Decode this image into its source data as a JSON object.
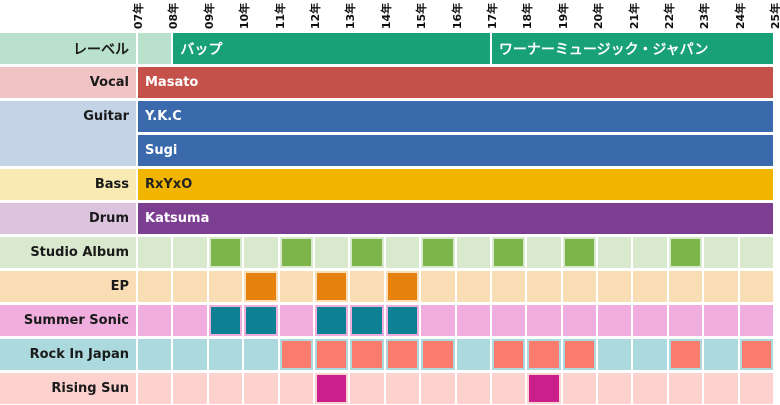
{
  "meta": {
    "description": "Band history timeline chart (2007-2025): label, members, releases and festival appearances"
  },
  "axis": {
    "tick_labels": [
      "07年",
      "08年",
      "09年",
      "10年",
      "11年",
      "12年",
      "13年",
      "14年",
      "15年",
      "16年",
      "17年",
      "18年",
      "19年",
      "20年",
      "21年",
      "22年",
      "23年",
      "24年",
      "25年"
    ],
    "start_year": 2007,
    "end_year": 2025
  },
  "colors": {
    "background": "#ffffff",
    "grid_gap": "#ffffff",
    "header_text": "#1a1a1a",
    "bar_text_light": "#ffffff",
    "bar_text_dark": "#222222",
    "axis_text": "#111111"
  },
  "rows": [
    {
      "header": "レーベル",
      "header_jp": true,
      "type": "bars",
      "grid_row": 1,
      "header_bg": "#b9e1cb",
      "track_bg": "#b9e1cb",
      "empty_segments": [
        {
          "start": 2007,
          "end": 2008
        }
      ],
      "bars": [
        {
          "label": "バップ",
          "jp": true,
          "start": 2008,
          "end": 2017,
          "color": "#18a077",
          "text_color": "#ffffff"
        },
        {
          "label": "ワーナーミュージック・ジャパン",
          "jp": true,
          "start": 2017,
          "end": 2025,
          "color": "#18a077",
          "text_color": "#ffffff"
        }
      ]
    },
    {
      "header": "Vocal",
      "type": "bars",
      "grid_row": 2,
      "header_bg": "#f0c4c4",
      "bars": [
        {
          "label": "Masato",
          "start": 2007,
          "end": 2025,
          "color": "#c5524a",
          "text_color": "#ffffff"
        }
      ]
    },
    {
      "header": "Guitar",
      "type": "bars",
      "grid_row": 3,
      "header_rowspan": 2,
      "header_bg": "#c4d3e6",
      "bars": [
        {
          "label": "Y.K.C",
          "start": 2007,
          "end": 2025,
          "color": "#3a69ac",
          "text_color": "#ffffff"
        }
      ]
    },
    {
      "header": null,
      "type": "bars",
      "grid_row": 4,
      "header_bg": "#c4d3e6",
      "bars": [
        {
          "label": "Sugi",
          "start": 2007,
          "end": 2025,
          "color": "#3a69ac",
          "text_color": "#ffffff"
        }
      ]
    },
    {
      "header": "Bass",
      "type": "bars",
      "grid_row": 5,
      "header_bg": "#f9e9b2",
      "bars": [
        {
          "label": "RxYxO",
          "start": 2007,
          "end": 2025,
          "color": "#f1b500",
          "text_color": "#222222"
        }
      ]
    },
    {
      "header": "Drum",
      "type": "bars",
      "grid_row": 6,
      "header_bg": "#dcc3de",
      "bars": [
        {
          "label": "Katsuma",
          "start": 2007,
          "end": 2025,
          "color": "#7c3e91",
          "text_color": "#ffffff"
        }
      ]
    },
    {
      "header": "Studio Album",
      "type": "cells",
      "grid_row": 7,
      "header_bg": "#d9e9cd",
      "pale": "#d9e9cd",
      "fill": "#7cb64a",
      "filled_years": [
        2009,
        2011,
        2013,
        2015,
        2017,
        2019,
        2022
      ]
    },
    {
      "header": "EP",
      "type": "cells",
      "grid_row": 8,
      "header_bg": "#f8ddb5",
      "pale": "#f8ddb5",
      "fill": "#e5810c",
      "filled_years": [
        2010,
        2012,
        2014
      ]
    },
    {
      "header": "Summer Sonic",
      "type": "cells",
      "grid_row": 9,
      "header_bg": "#efaede",
      "pale": "#efaede",
      "fill": "#0d8094",
      "filled_years": [
        2009,
        2010,
        2012,
        2013,
        2014
      ]
    },
    {
      "header": "Rock In Japan",
      "type": "cells",
      "grid_row": 10,
      "header_bg": "#abd9de",
      "pale": "#abd9de",
      "fill": "#f97c6e",
      "filled_years": [
        2011,
        2012,
        2013,
        2014,
        2015,
        2017,
        2018,
        2019,
        2022,
        2024
      ]
    },
    {
      "header": "Rising Sun",
      "type": "cells",
      "grid_row": 11,
      "header_bg": "#fdd2ce",
      "pale": "#fdd2ce",
      "fill": "#cb1f8e",
      "filled_years": [
        2012,
        2018
      ]
    }
  ],
  "chart_data": {
    "type": "bar",
    "subtype": "gantt-timeline",
    "title": "",
    "xlabel": "",
    "ylabel": "",
    "x_tick_labels": [
      "07年",
      "08年",
      "09年",
      "10年",
      "11年",
      "12年",
      "13年",
      "14年",
      "15年",
      "16年",
      "17年",
      "18年",
      "19年",
      "20年",
      "21年",
      "22年",
      "23年",
      "24年",
      "25年"
    ],
    "x_range": [
      2007,
      2025
    ],
    "grid": true,
    "legend": false,
    "rows": [
      {
        "label": "レーベル",
        "bars": [
          {
            "name": "バップ",
            "start": 2008,
            "end": 2017
          },
          {
            "name": "ワーナーミュージック・ジャパン",
            "start": 2017,
            "end": 2025
          }
        ]
      },
      {
        "label": "Vocal",
        "bars": [
          {
            "name": "Masato",
            "start": 2007,
            "end": 2025
          }
        ]
      },
      {
        "label": "Guitar",
        "bars": [
          {
            "name": "Y.K.C",
            "start": 2007,
            "end": 2025
          },
          {
            "name": "Sugi",
            "start": 2007,
            "end": 2025
          }
        ]
      },
      {
        "label": "Bass",
        "bars": [
          {
            "name": "RxYxO",
            "start": 2007,
            "end": 2025
          }
        ]
      },
      {
        "label": "Drum",
        "bars": [
          {
            "name": "Katsuma",
            "start": 2007,
            "end": 2025
          }
        ]
      },
      {
        "label": "Studio Album",
        "event_years": [
          2009,
          2011,
          2013,
          2015,
          2017,
          2019,
          2022
        ]
      },
      {
        "label": "EP",
        "event_years": [
          2010,
          2012,
          2014
        ]
      },
      {
        "label": "Summer Sonic",
        "event_years": [
          2009,
          2010,
          2012,
          2013,
          2014
        ]
      },
      {
        "label": "Rock In Japan",
        "event_years": [
          2011,
          2012,
          2013,
          2014,
          2015,
          2017,
          2018,
          2019,
          2022,
          2024
        ]
      },
      {
        "label": "Rising Sun",
        "event_years": [
          2012,
          2018
        ]
      }
    ]
  }
}
